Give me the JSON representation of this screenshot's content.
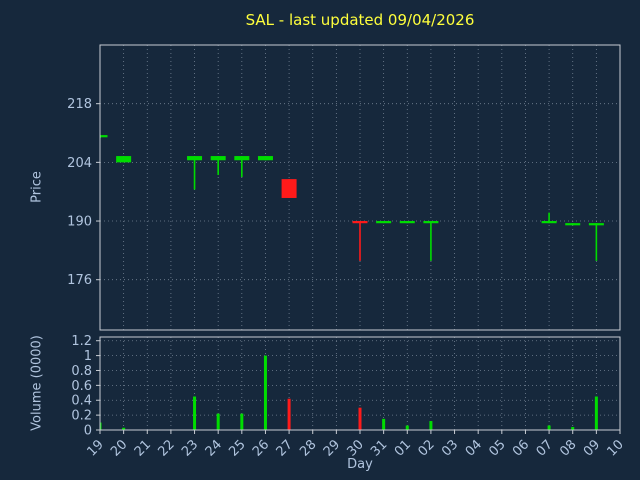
{
  "chart_data": {
    "type": "candlestick",
    "title": "SAL - last updated 09/04/2026",
    "xlabel": "Day",
    "price_ylabel": "Price",
    "volume_ylabel": "Volume (0000)",
    "x_categories": [
      "19",
      "20",
      "21",
      "22",
      "23",
      "24",
      "25",
      "26",
      "27",
      "28",
      "29",
      "30",
      "31",
      "01",
      "02",
      "03",
      "04",
      "05",
      "06",
      "07",
      "08",
      "09",
      "10"
    ],
    "price_ticks": [
      218,
      204,
      190,
      176
    ],
    "price_ylim": [
      164,
      232
    ],
    "volume_ticks": [
      1.2,
      1,
      0.8,
      0.6,
      0.4,
      0.2,
      0
    ],
    "volume_ylim": [
      0,
      1.25
    ],
    "grid": true,
    "candles": [
      {
        "day": "19",
        "open": 210,
        "high": 210.5,
        "low": 209.8,
        "close": 210.5,
        "volume": 0.1
      },
      {
        "day": "20",
        "open": 204,
        "high": 205.5,
        "low": 204,
        "close": 205.5,
        "volume": 0.03
      },
      {
        "day": "23",
        "open": 204.5,
        "high": 205.5,
        "low": 197.5,
        "close": 205.5,
        "volume": 0.45
      },
      {
        "day": "24",
        "open": 204.5,
        "high": 205.5,
        "low": 201,
        "close": 205.5,
        "volume": 0.22
      },
      {
        "day": "25",
        "open": 204.5,
        "high": 205.5,
        "low": 200.5,
        "close": 205.5,
        "volume": 0.22
      },
      {
        "day": "26",
        "open": 204.5,
        "high": 205.5,
        "low": 204.5,
        "close": 205.5,
        "volume": 1.0
      },
      {
        "day": "27",
        "open": 200,
        "high": 200,
        "low": 195.5,
        "close": 195.5,
        "volume": 0.42
      },
      {
        "day": "30",
        "open": 190,
        "high": 190,
        "low": 180.5,
        "close": 189.5,
        "volume": 0.3
      },
      {
        "day": "31",
        "open": 189.5,
        "high": 190,
        "low": 189.5,
        "close": 190,
        "volume": 0.15
      },
      {
        "day": "01",
        "open": 189.5,
        "high": 190,
        "low": 189.5,
        "close": 190,
        "volume": 0.06
      },
      {
        "day": "02",
        "open": 189.5,
        "high": 190,
        "low": 180.5,
        "close": 190,
        "volume": 0.12
      },
      {
        "day": "07",
        "open": 189.5,
        "high": 192,
        "low": 189.5,
        "close": 190,
        "volume": 0.06
      },
      {
        "day": "08",
        "open": 189,
        "high": 189.5,
        "low": 189,
        "close": 189.5,
        "volume": 0.04
      },
      {
        "day": "09",
        "open": 189,
        "high": 189.5,
        "low": 180.5,
        "close": 189.5,
        "volume": 0.45
      }
    ],
    "colors": {
      "up": "#00dd00",
      "down": "#ff1a1a",
      "background": "#16283c",
      "title": "#ffff3c",
      "labels": "#b0c4de",
      "grid": "#93a1b1",
      "frame": "#c8cdd4"
    }
  }
}
